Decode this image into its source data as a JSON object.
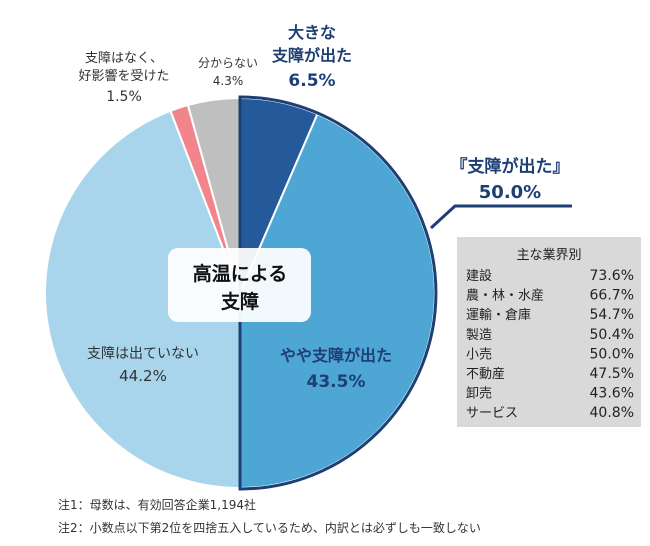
{
  "chart_data": {
    "type": "pie",
    "title": "高温による支障",
    "title_lines": [
      "高温に",
      "よる",
      "支障"
    ],
    "slices": [
      {
        "label": "大きな支障が出た",
        "label_lines": [
          "大きな",
          "支障が出た"
        ],
        "value": 6.5,
        "value_text": "6.5%",
        "color": "#24599a"
      },
      {
        "label": "やや支障が出た",
        "label_lines": [
          "やや支障が出た"
        ],
        "value": 43.5,
        "value_text": "43.5%",
        "color": "#4ea6d5"
      },
      {
        "label": "支障は出ていない",
        "label_lines": [
          "支障は出ていない"
        ],
        "value": 44.2,
        "value_text": "44.2%",
        "color": "#a9d5ec"
      },
      {
        "label": "支障はなく、好影響を受けた",
        "label_lines": [
          "支障はなく、",
          "好影響を受けた"
        ],
        "value": 1.5,
        "value_text": "1.5%",
        "color": "#f2848b"
      },
      {
        "label": "分からない",
        "label_lines": [
          "分からない"
        ],
        "value": 4.3,
        "value_text": "4.3%",
        "color": "#bfbfbf"
      }
    ],
    "callout": {
      "label": "『支障が出た』",
      "value": 50.0,
      "value_text": "50.0%"
    },
    "breakdown": {
      "title": "主な業界別",
      "rows": [
        {
          "label": "建設",
          "value": 73.6,
          "value_text": "73.6%"
        },
        {
          "label": "農・林・水産",
          "value": 66.7,
          "value_text": "66.7%"
        },
        {
          "label": "運輸・倉庫",
          "value": 54.7,
          "value_text": "54.7%"
        },
        {
          "label": "製造",
          "value": 50.4,
          "value_text": "50.4%"
        },
        {
          "label": "小売",
          "value": 50.0,
          "value_text": "50.0%"
        },
        {
          "label": "不動産",
          "value": 47.5,
          "value_text": "47.5%"
        },
        {
          "label": "卸売",
          "value": 43.6,
          "value_text": "43.6%"
        },
        {
          "label": "サービス",
          "value": 40.8,
          "value_text": "40.8%"
        }
      ]
    },
    "highlight_color": "#1e3f73"
  },
  "notes": [
    "注1：母数は、有効回答企業1,194社",
    "注2：小数点以下第2位を四捨五入しているため、内訳とは必ずしも一致しない"
  ]
}
